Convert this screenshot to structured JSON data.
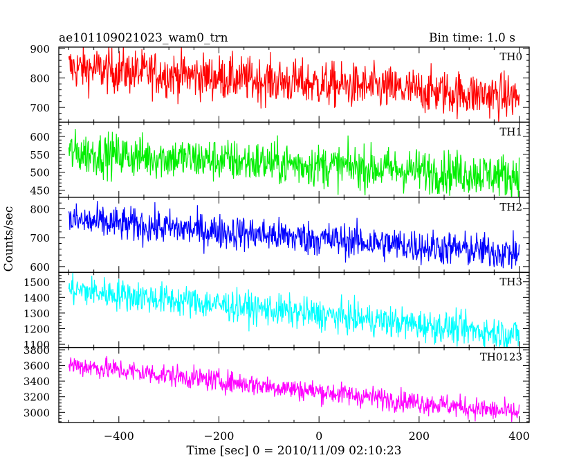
{
  "header": {
    "title": "ae101109021023_wam0_trn",
    "bin_time": "Bin time: 1.0 s"
  },
  "chart_data": {
    "type": "line",
    "title": "ae101109021023_wam0_trn",
    "subtitle": "Bin time: 1.0 s",
    "xlabel": "Time [sec] 0 = 2010/11/09 02:10:23",
    "ylabel": "Counts/sec",
    "xlim": [
      -520,
      420
    ],
    "x_ticks": [
      -400,
      -200,
      0,
      200,
      400
    ],
    "x_range": [
      -500,
      400
    ],
    "bin_time": 1.0,
    "grid": false,
    "panels": [
      {
        "name": "TH0",
        "color": "#ff0000",
        "ylim": [
          650,
          905
        ],
        "y_ticks": [
          700,
          800,
          900
        ],
        "trend_start": 835,
        "trend_end": 735,
        "noise": 38
      },
      {
        "name": "TH1",
        "color": "#00ee00",
        "ylim": [
          430,
          640
        ],
        "y_ticks": [
          450,
          500,
          550,
          600
        ],
        "trend_start": 555,
        "trend_end": 490,
        "noise": 30
      },
      {
        "name": "TH2",
        "color": "#0000ff",
        "ylim": [
          580,
          840
        ],
        "y_ticks": [
          600,
          700,
          800
        ],
        "trend_start": 760,
        "trend_end": 645,
        "noise": 30
      },
      {
        "name": "TH3",
        "color": "#00ffff",
        "ylim": [
          1080,
          1560
        ],
        "y_ticks": [
          1100,
          1200,
          1300,
          1400,
          1500
        ],
        "trend_start": 1450,
        "trend_end": 1160,
        "noise": 50
      },
      {
        "name": "TH0123",
        "color": "#ff00ff",
        "ylim": [
          2870,
          3830
        ],
        "y_ticks": [
          3000,
          3200,
          3400,
          3600,
          3800
        ],
        "trend_start": 3610,
        "trend_end": 2990,
        "noise": 70
      }
    ]
  }
}
